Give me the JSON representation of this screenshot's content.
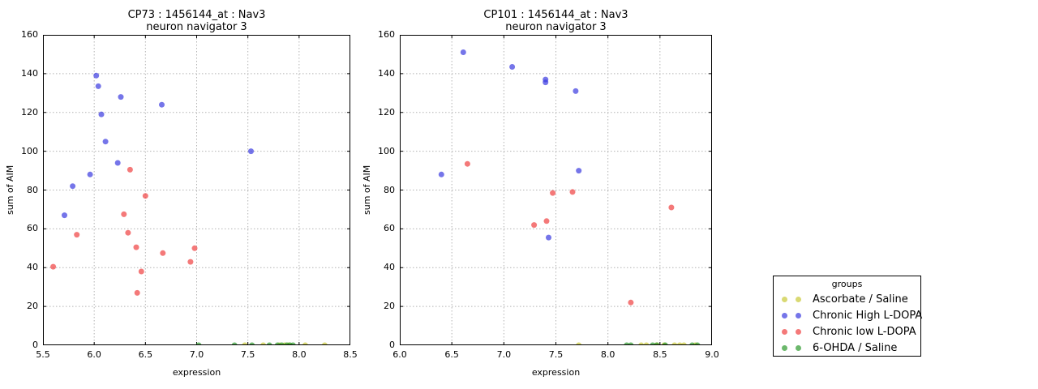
{
  "style": {
    "marker_opacity": 0.7,
    "grid_color": "#b3b3b3",
    "axis_color": "#000000",
    "background": "#ffffff"
  },
  "legend": {
    "title": "groups",
    "entries": [
      {
        "label": "Ascorbate / Saline",
        "color": "#c9c937"
      },
      {
        "label": "Chronic High L-DOPA",
        "color": "#3a3ae0"
      },
      {
        "label": "Chronic low L-DOPA",
        "color": "#ef4040"
      },
      {
        "label": "6-OHDA / Saline",
        "color": "#2d9a2d"
      }
    ]
  },
  "chart_data": [
    {
      "type": "scatter",
      "title": "CP73 : 1456144_at : Nav3",
      "subtitle": "neuron navigator 3",
      "xlabel": "expression",
      "ylabel": "sum of AIM",
      "xlim": [
        5.5,
        8.5
      ],
      "ylim": [
        0,
        160
      ],
      "xticks": [
        "5.5",
        "6.0",
        "6.5",
        "7.0",
        "7.5",
        "8.0",
        "8.5"
      ],
      "yticks": [
        "0",
        "20",
        "40",
        "60",
        "80",
        "100",
        "120",
        "140",
        "160"
      ],
      "grid": "dotted",
      "legend_position": "outside-right-figure",
      "series": [
        {
          "name": "Ascorbate / Saline",
          "color": "#c9c937",
          "points": [
            [
              7.47,
              0
            ],
            [
              7.65,
              0
            ],
            [
              7.81,
              0
            ],
            [
              7.86,
              0
            ],
            [
              7.9,
              0
            ],
            [
              8.06,
              0
            ],
            [
              8.25,
              0
            ]
          ]
        },
        {
          "name": "Chronic High L-DOPA",
          "color": "#3a3ae0",
          "points": [
            [
              5.71,
              67
            ],
            [
              5.79,
              82
            ],
            [
              5.96,
              88
            ],
            [
              6.02,
              139
            ],
            [
              6.04,
              133.5
            ],
            [
              6.07,
              119
            ],
            [
              6.11,
              105
            ],
            [
              6.23,
              94
            ],
            [
              6.26,
              128
            ],
            [
              6.66,
              124
            ],
            [
              7.53,
              100
            ]
          ]
        },
        {
          "name": "Chronic low L-DOPA",
          "color": "#ef4040",
          "points": [
            [
              5.6,
              40.5
            ],
            [
              5.83,
              57
            ],
            [
              6.29,
              67.5
            ],
            [
              6.33,
              58
            ],
            [
              6.35,
              90.5
            ],
            [
              6.41,
              50.5
            ],
            [
              6.42,
              27
            ],
            [
              6.46,
              38
            ],
            [
              6.5,
              77
            ],
            [
              6.67,
              47.5
            ],
            [
              6.94,
              43
            ],
            [
              6.98,
              50
            ]
          ]
        },
        {
          "name": "6-OHDA / Saline",
          "color": "#2d9a2d",
          "points": [
            [
              7.02,
              0
            ],
            [
              7.37,
              0
            ],
            [
              7.54,
              0
            ],
            [
              7.71,
              0
            ],
            [
              7.79,
              0
            ],
            [
              7.83,
              0
            ],
            [
              7.88,
              0
            ],
            [
              7.91,
              0
            ],
            [
              7.94,
              0
            ]
          ]
        }
      ]
    },
    {
      "type": "scatter",
      "title": "CP101 : 1456144_at : Nav3",
      "subtitle": "neuron navigator 3",
      "xlabel": "expression",
      "ylabel": "sum of AIM",
      "xlim": [
        6.0,
        9.0
      ],
      "ylim": [
        0,
        160
      ],
      "xticks": [
        "6.0",
        "6.5",
        "7.0",
        "7.5",
        "8.0",
        "8.5",
        "9.0"
      ],
      "yticks": [
        "0",
        "20",
        "40",
        "60",
        "80",
        "100",
        "120",
        "140",
        "160"
      ],
      "grid": "dotted",
      "legend_position": "outside-right-figure",
      "series": [
        {
          "name": "Ascorbate / Saline",
          "color": "#c9c937",
          "points": [
            [
              7.72,
              0
            ],
            [
              8.32,
              0
            ],
            [
              8.37,
              0
            ],
            [
              8.47,
              0
            ],
            [
              8.54,
              0
            ],
            [
              8.64,
              0
            ],
            [
              8.69,
              0
            ],
            [
              8.73,
              0
            ],
            [
              8.84,
              0
            ]
          ]
        },
        {
          "name": "Chronic High L-DOPA",
          "color": "#3a3ae0",
          "points": [
            [
              6.4,
              88
            ],
            [
              6.61,
              151
            ],
            [
              7.08,
              143.5
            ],
            [
              7.4,
              137
            ],
            [
              7.4,
              135.5
            ],
            [
              7.43,
              55.5
            ],
            [
              7.69,
              131
            ],
            [
              7.72,
              90
            ]
          ]
        },
        {
          "name": "Chronic low L-DOPA",
          "color": "#ef4040",
          "points": [
            [
              6.65,
              93.5
            ],
            [
              7.29,
              62
            ],
            [
              7.41,
              64
            ],
            [
              7.47,
              78.5
            ],
            [
              7.66,
              79
            ],
            [
              8.22,
              22
            ],
            [
              8.61,
              71
            ]
          ]
        },
        {
          "name": "6-OHDA / Saline",
          "color": "#2d9a2d",
          "points": [
            [
              8.18,
              0
            ],
            [
              8.22,
              0
            ],
            [
              8.43,
              0
            ],
            [
              8.47,
              0
            ],
            [
              8.55,
              0
            ],
            [
              8.81,
              0
            ],
            [
              8.86,
              0
            ]
          ]
        }
      ]
    }
  ]
}
